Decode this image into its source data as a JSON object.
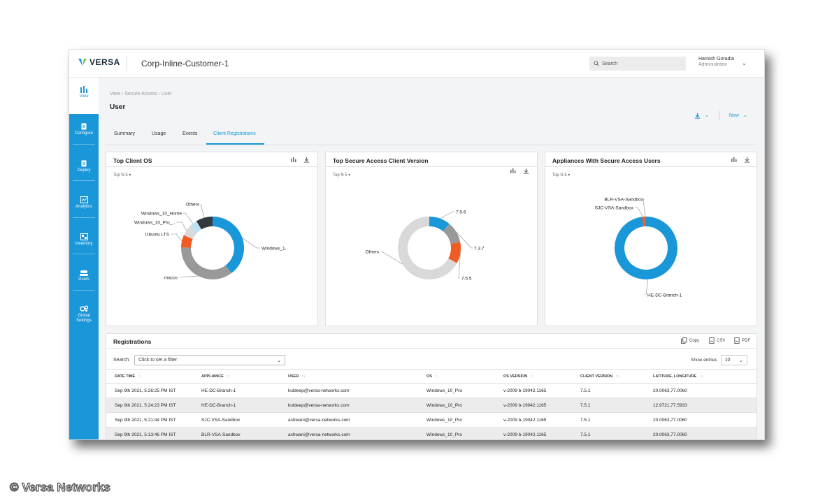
{
  "app": {
    "logo_text": "VERSA",
    "tenant": "Corp-Inline-Customer-1"
  },
  "search": {
    "placeholder": "Search"
  },
  "user": {
    "name": "Harnish Goradia",
    "role": "Administrator"
  },
  "sidebar": {
    "items": [
      {
        "label": "View",
        "icon": "bar-chart-icon"
      },
      {
        "label": "Configure",
        "icon": "document-icon"
      },
      {
        "label": "Deploy",
        "icon": "document-icon"
      },
      {
        "label": "Analytics",
        "icon": "analytics-icon"
      },
      {
        "label": "Inventory",
        "icon": "inventory-icon"
      },
      {
        "label": "Users",
        "icon": "users-icon"
      },
      {
        "label": "Global Settings",
        "icon": "gears-icon"
      }
    ]
  },
  "breadcrumb": {
    "text": "View  ›  Secure Access  ›  User"
  },
  "page": {
    "title": "User",
    "time_label": "Now"
  },
  "tabs": [
    "Summary",
    "Usage",
    "Events",
    "Client Registrations"
  ],
  "cards": {
    "client_os": {
      "title": "Top Client OS",
      "topn": "Top N 5  ▾"
    },
    "client_version": {
      "title": "Top Secure Access Client Version",
      "topn": "Top N 5  ▾"
    },
    "appliances": {
      "title": "Appliances With Secure Access Users",
      "topn": "Top N 5  ▾"
    }
  },
  "colors": {
    "accent": "#1a97d8",
    "blue": "#1a97d8",
    "orange": "#f05a23",
    "gray": "#999999",
    "lightgray": "#d9d9d9",
    "dark": "#333a3f",
    "lightblue": "#bfe1ef"
  },
  "chart_data": [
    {
      "type": "pie",
      "title": "Top Client OS",
      "labels": [
        "Windows_1..",
        "macos",
        "Ubuntu LTS",
        "Windows_10_Pro_..",
        "Windows_10_Home",
        "Others"
      ],
      "values": [
        37,
        33,
        6,
        5,
        4,
        8
      ]
    },
    {
      "type": "pie",
      "title": "Top Secure Access Client Version",
      "labels": [
        "7.5.6",
        "7.3.7",
        "7.5.5",
        "Others"
      ],
      "values": [
        11,
        11,
        11,
        67
      ]
    },
    {
      "type": "pie",
      "title": "Appliances With Secure Access Users",
      "labels": [
        "HE-DC-Branch-1",
        "SJC-VSA-Sandbox",
        "BLR-VSA-Sandbox"
      ],
      "values": [
        98,
        1,
        1
      ]
    }
  ],
  "registrations": {
    "title": "Registrations",
    "copy_label": "Copy",
    "csv_label": "CSV",
    "pdf_label": "PDF",
    "search_label": "Search:",
    "filter_placeholder": "Click to set a filter",
    "show_entries_label": "Show entries",
    "entries_value": "10",
    "columns": [
      "Date Time",
      "Appliance",
      "User",
      "OS",
      "OS Version",
      "Client Version",
      "Latitude, Longitude"
    ],
    "rows": [
      [
        "Sep 9th 2021, 5:26:25 PM IST",
        "HE-DC-Branch-1",
        "kuldeep@versa-networks.com",
        "Windows_10_Pro",
        "v-2009 b-19042.1165",
        "7.5.1",
        "20.0063,77.0060"
      ],
      [
        "Sep 9th 2021, 5:24:23 PM IST",
        "HE-DC-Branch-1",
        "kuldeep@versa-networks.com",
        "Windows_10_Pro",
        "v-2009 b-19042.1165",
        "7.5.1",
        "12.9721,77.5933"
      ],
      [
        "Sep 9th 2021, 5:21:44 PM IST",
        "SJC-VSA-Sandbox",
        "ashwani@versa-networks.com",
        "Windows_10_Pro",
        "v-2009 b-19042.1165",
        "7.5.1",
        "20.0063,77.0060"
      ],
      [
        "Sep 9th 2021, 5:13:46 PM IST",
        "BLR-VSA-Sandbox",
        "ashwani@versa-networks.com",
        "Windows_10_Pro",
        "v-2009 b-19042.1165",
        "7.5.1",
        "20.0063,77.0060"
      ]
    ]
  },
  "copyright": "© Versa Networks"
}
